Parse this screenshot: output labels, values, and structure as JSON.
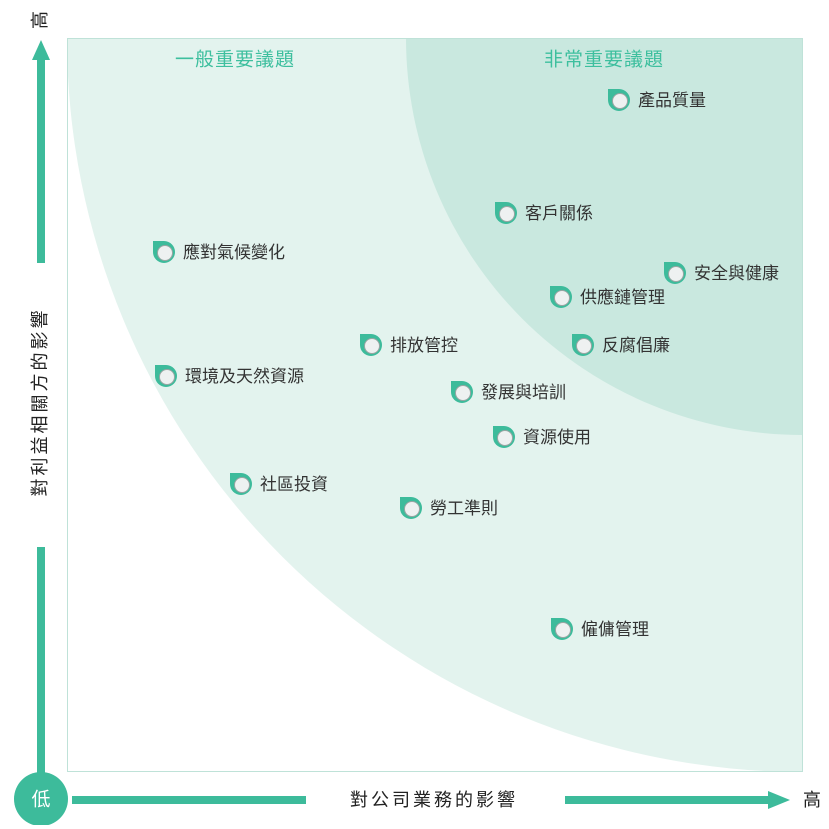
{
  "y_axis": {
    "label": "對利益相關方的影響",
    "high": "高"
  },
  "x_axis": {
    "label": "對公司業務的影響",
    "high": "高"
  },
  "origin": "低",
  "zones": [
    "一般重要議題",
    "非常重要議題"
  ],
  "nodes": [
    {
      "label": "產品質量"
    },
    {
      "label": "客戶關係"
    },
    {
      "label": "應對氣候變化"
    },
    {
      "label": "安全與健康"
    },
    {
      "label": "供應鏈管理"
    },
    {
      "label": "排放管控"
    },
    {
      "label": "反腐倡廉"
    },
    {
      "label": "環境及天然資源"
    },
    {
      "label": "發展與培訓"
    },
    {
      "label": "資源使用"
    },
    {
      "label": "社區投資"
    },
    {
      "label": "勞工準則"
    },
    {
      "label": "僱傭管理"
    }
  ]
}
